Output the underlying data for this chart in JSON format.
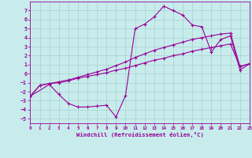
{
  "background_color": "#c8ecec",
  "grid_color": "#a8d0d0",
  "line_color": "#990099",
  "xlabel": "Windchill (Refroidissement éolien,°C)",
  "xlim": [
    0,
    23
  ],
  "ylim": [
    -5.5,
    8.0
  ],
  "xticks": [
    0,
    1,
    2,
    3,
    4,
    5,
    6,
    7,
    8,
    9,
    10,
    11,
    12,
    13,
    14,
    15,
    16,
    17,
    18,
    19,
    20,
    21,
    22,
    23
  ],
  "yticks": [
    -5,
    -4,
    -3,
    -2,
    -1,
    0,
    1,
    2,
    3,
    4,
    5,
    6,
    7
  ],
  "s1_x": [
    0,
    1,
    2,
    3,
    4,
    5,
    6,
    7,
    8,
    9,
    10,
    11,
    12,
    13,
    14,
    15,
    16,
    17,
    18,
    19,
    20,
    21,
    22,
    23
  ],
  "s1_y": [
    -2.5,
    -1.3,
    -1.1,
    -1.0,
    -0.8,
    -0.5,
    -0.3,
    -0.1,
    0.1,
    0.4,
    0.6,
    0.9,
    1.2,
    1.5,
    1.7,
    2.0,
    2.2,
    2.5,
    2.7,
    2.9,
    3.1,
    3.3,
    0.8,
    1.1
  ],
  "s2_x": [
    0,
    1,
    2,
    3,
    4,
    5,
    6,
    7,
    8,
    9,
    10,
    11,
    12,
    13,
    14,
    15,
    16,
    17,
    18,
    19,
    20,
    21,
    22,
    23
  ],
  "s2_y": [
    -2.5,
    -1.3,
    -1.1,
    -0.9,
    -0.7,
    -0.4,
    -0.1,
    0.2,
    0.5,
    0.9,
    1.3,
    1.8,
    2.2,
    2.6,
    2.9,
    3.2,
    3.5,
    3.8,
    4.0,
    4.2,
    4.4,
    4.5,
    0.8,
    1.1
  ],
  "s3_x": [
    0,
    2,
    3,
    4,
    5,
    6,
    7,
    8,
    9,
    10,
    11,
    12,
    13,
    14,
    15,
    16,
    17,
    18,
    19,
    20,
    21,
    22,
    23
  ],
  "s3_y": [
    -2.5,
    -1.2,
    -2.3,
    -3.3,
    -3.7,
    -3.7,
    -3.6,
    -3.5,
    -4.8,
    -2.4,
    5.0,
    5.5,
    6.3,
    7.5,
    7.0,
    6.5,
    5.4,
    5.2,
    2.4,
    3.8,
    4.2,
    0.4,
    1.1
  ]
}
